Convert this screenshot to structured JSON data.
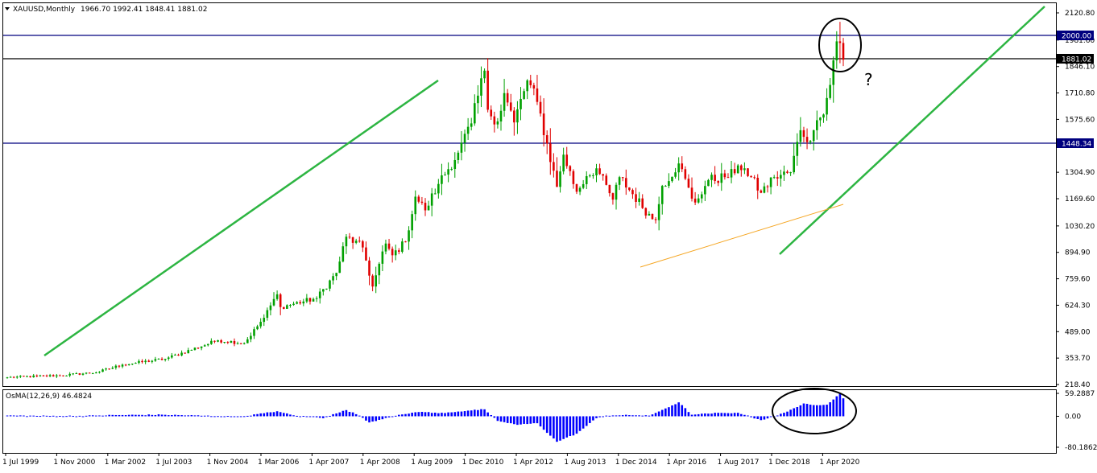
{
  "chart_data": [
    {
      "type": "candlestick",
      "symbol_header": "XAUUSD,Monthly",
      "ohlc_header": "1966.70 1992.41 1848.41 1881.02",
      "y_ticks": [
        "2120.80",
        "1981.60",
        "1846.10",
        "1710.80",
        "1575.60",
        "1304.90",
        "1169.60",
        "1030.20",
        "894.90",
        "759.60",
        "624.30",
        "489.00",
        "353.70",
        "218.40"
      ],
      "ylim": [
        218.4,
        2120.8
      ],
      "x_ticks": [
        "1 Jul 1999",
        "1 Nov 2000",
        "1 Mar 2002",
        "1 Jul 2003",
        "1 Nov 2004",
        "1 Mar 2006",
        "1 Apr 2007",
        "1 Apr 2008",
        "1 Aug 2009",
        "1 Dec 2010",
        "1 Apr 2012",
        "1 Aug 2013",
        "1 Dec 2014",
        "1 Apr 2016",
        "1 Aug 2017",
        "1 Dec 2018",
        "1 Apr 2020"
      ],
      "horizontal_levels": [
        {
          "label": "2000.00",
          "value": 2000.0,
          "boxed": true
        },
        {
          "label": "1881.02",
          "value": 1881.02,
          "boxed": true
        },
        {
          "label": "1448.34",
          "value": 1448.34,
          "boxed": true
        }
      ],
      "annotation_text": "?",
      "bullish_color": "#00a000",
      "bearish_color": "#e00000",
      "level_line_color": "#00007f",
      "trend_line_color": "#2db542",
      "orange_line_color": "#f5a623",
      "anchors": [
        {
          "date": "1999-07",
          "close": 255
        },
        {
          "date": "2000-11",
          "close": 265
        },
        {
          "date": "2001-10",
          "close": 280
        },
        {
          "date": "2002-06",
          "close": 320
        },
        {
          "date": "2003-07",
          "close": 350
        },
        {
          "date": "2004-11",
          "close": 445
        },
        {
          "date": "2005-07",
          "close": 430
        },
        {
          "date": "2006-01",
          "close": 560
        },
        {
          "date": "2006-05",
          "close": 680
        },
        {
          "date": "2006-06",
          "close": 615
        },
        {
          "date": "2007-05",
          "close": 660
        },
        {
          "date": "2007-11",
          "close": 790
        },
        {
          "date": "2008-02",
          "close": 975
        },
        {
          "date": "2008-07",
          "close": 920
        },
        {
          "date": "2008-10",
          "close": 720
        },
        {
          "date": "2009-02",
          "close": 940
        },
        {
          "date": "2009-04",
          "close": 880
        },
        {
          "date": "2009-08",
          "close": 950
        },
        {
          "date": "2009-11",
          "close": 1180
        },
        {
          "date": "2010-02",
          "close": 1110
        },
        {
          "date": "2010-06",
          "close": 1245
        },
        {
          "date": "2010-12",
          "close": 1405
        },
        {
          "date": "2011-04",
          "close": 1555
        },
        {
          "date": "2011-08",
          "close": 1825
        },
        {
          "date": "2011-09",
          "close": 1625
        },
        {
          "date": "2011-12",
          "close": 1565
        },
        {
          "date": "2012-02",
          "close": 1710
        },
        {
          "date": "2012-05",
          "close": 1560
        },
        {
          "date": "2012-09",
          "close": 1775
        },
        {
          "date": "2012-12",
          "close": 1665
        },
        {
          "date": "2013-06",
          "close": 1230
        },
        {
          "date": "2013-08",
          "close": 1395
        },
        {
          "date": "2013-12",
          "close": 1205
        },
        {
          "date": "2014-03",
          "close": 1285
        },
        {
          "date": "2014-06",
          "close": 1325
        },
        {
          "date": "2014-11",
          "close": 1165
        },
        {
          "date": "2015-01",
          "close": 1280
        },
        {
          "date": "2015-11",
          "close": 1065
        },
        {
          "date": "2015-12",
          "close": 1060
        },
        {
          "date": "2016-02",
          "close": 1235
        },
        {
          "date": "2016-07",
          "close": 1350
        },
        {
          "date": "2016-11",
          "close": 1170
        },
        {
          "date": "2016-12",
          "close": 1150
        },
        {
          "date": "2017-04",
          "close": 1265
        },
        {
          "date": "2017-09",
          "close": 1280
        },
        {
          "date": "2017-12",
          "close": 1300
        },
        {
          "date": "2018-01",
          "close": 1340
        },
        {
          "date": "2018-03",
          "close": 1325
        },
        {
          "date": "2018-08",
          "close": 1200
        },
        {
          "date": "2018-12",
          "close": 1280
        },
        {
          "date": "2019-05",
          "close": 1305
        },
        {
          "date": "2019-08",
          "close": 1520
        },
        {
          "date": "2019-11",
          "close": 1465
        },
        {
          "date": "2019-12",
          "close": 1520
        },
        {
          "date": "2020-02",
          "close": 1585
        },
        {
          "date": "2020-04",
          "close": 1685
        },
        {
          "date": "2020-07",
          "close": 1975
        },
        {
          "date": "2020-08",
          "close": 1966.7
        },
        {
          "date": "2020-09",
          "close": 1881.02
        }
      ],
      "last_candle": {
        "date": "2020-09",
        "open": 1966.7,
        "high": 1992.41,
        "low": 1848.41,
        "close": 1881.02
      },
      "top_candle": {
        "date": "2020-08",
        "open": 1975,
        "high": 2075,
        "low": 1863,
        "close": 1966.7
      }
    },
    {
      "type": "bar",
      "indicator_header": "OsMA(12,26,9) 46.4824",
      "y_ticks": [
        "59.2887",
        "0.00",
        "-80.1862"
      ],
      "ylim": [
        -80.1862,
        59.2887
      ],
      "bar_color": "#0000ff",
      "anchors": [
        {
          "date": "1999-07",
          "value": 2
        },
        {
          "date": "2000-06",
          "value": 1
        },
        {
          "date": "2001-06",
          "value": 1
        },
        {
          "date": "2002-03",
          "value": 3
        },
        {
          "date": "2003-06",
          "value": 4
        },
        {
          "date": "2004-04",
          "value": 2
        },
        {
          "date": "2005-06",
          "value": -1
        },
        {
          "date": "2006-05",
          "value": 13
        },
        {
          "date": "2006-10",
          "value": 2
        },
        {
          "date": "2007-07",
          "value": -4
        },
        {
          "date": "2008-02",
          "value": 16
        },
        {
          "date": "2008-06",
          "value": 2
        },
        {
          "date": "2008-09",
          "value": -16
        },
        {
          "date": "2009-03",
          "value": -2
        },
        {
          "date": "2009-12",
          "value": 12
        },
        {
          "date": "2010-06",
          "value": 8
        },
        {
          "date": "2011-08",
          "value": 18
        },
        {
          "date": "2011-10",
          "value": 2
        },
        {
          "date": "2011-12",
          "value": -12
        },
        {
          "date": "2012-06",
          "value": -22
        },
        {
          "date": "2012-12",
          "value": -18
        },
        {
          "date": "2013-06",
          "value": -66
        },
        {
          "date": "2013-12",
          "value": -45
        },
        {
          "date": "2014-06",
          "value": -5
        },
        {
          "date": "2014-09",
          "value": 2
        },
        {
          "date": "2015-06",
          "value": 3
        },
        {
          "date": "2015-10",
          "value": 1
        },
        {
          "date": "2016-07",
          "value": 36
        },
        {
          "date": "2016-11",
          "value": 4
        },
        {
          "date": "2017-06",
          "value": 8
        },
        {
          "date": "2018-01",
          "value": 9
        },
        {
          "date": "2018-08",
          "value": -10
        },
        {
          "date": "2019-01",
          "value": 2
        },
        {
          "date": "2019-09",
          "value": 32
        },
        {
          "date": "2020-01",
          "value": 28
        },
        {
          "date": "2020-04",
          "value": 30
        },
        {
          "date": "2020-08",
          "value": 59
        },
        {
          "date": "2020-09",
          "value": 46.48
        }
      ]
    }
  ]
}
